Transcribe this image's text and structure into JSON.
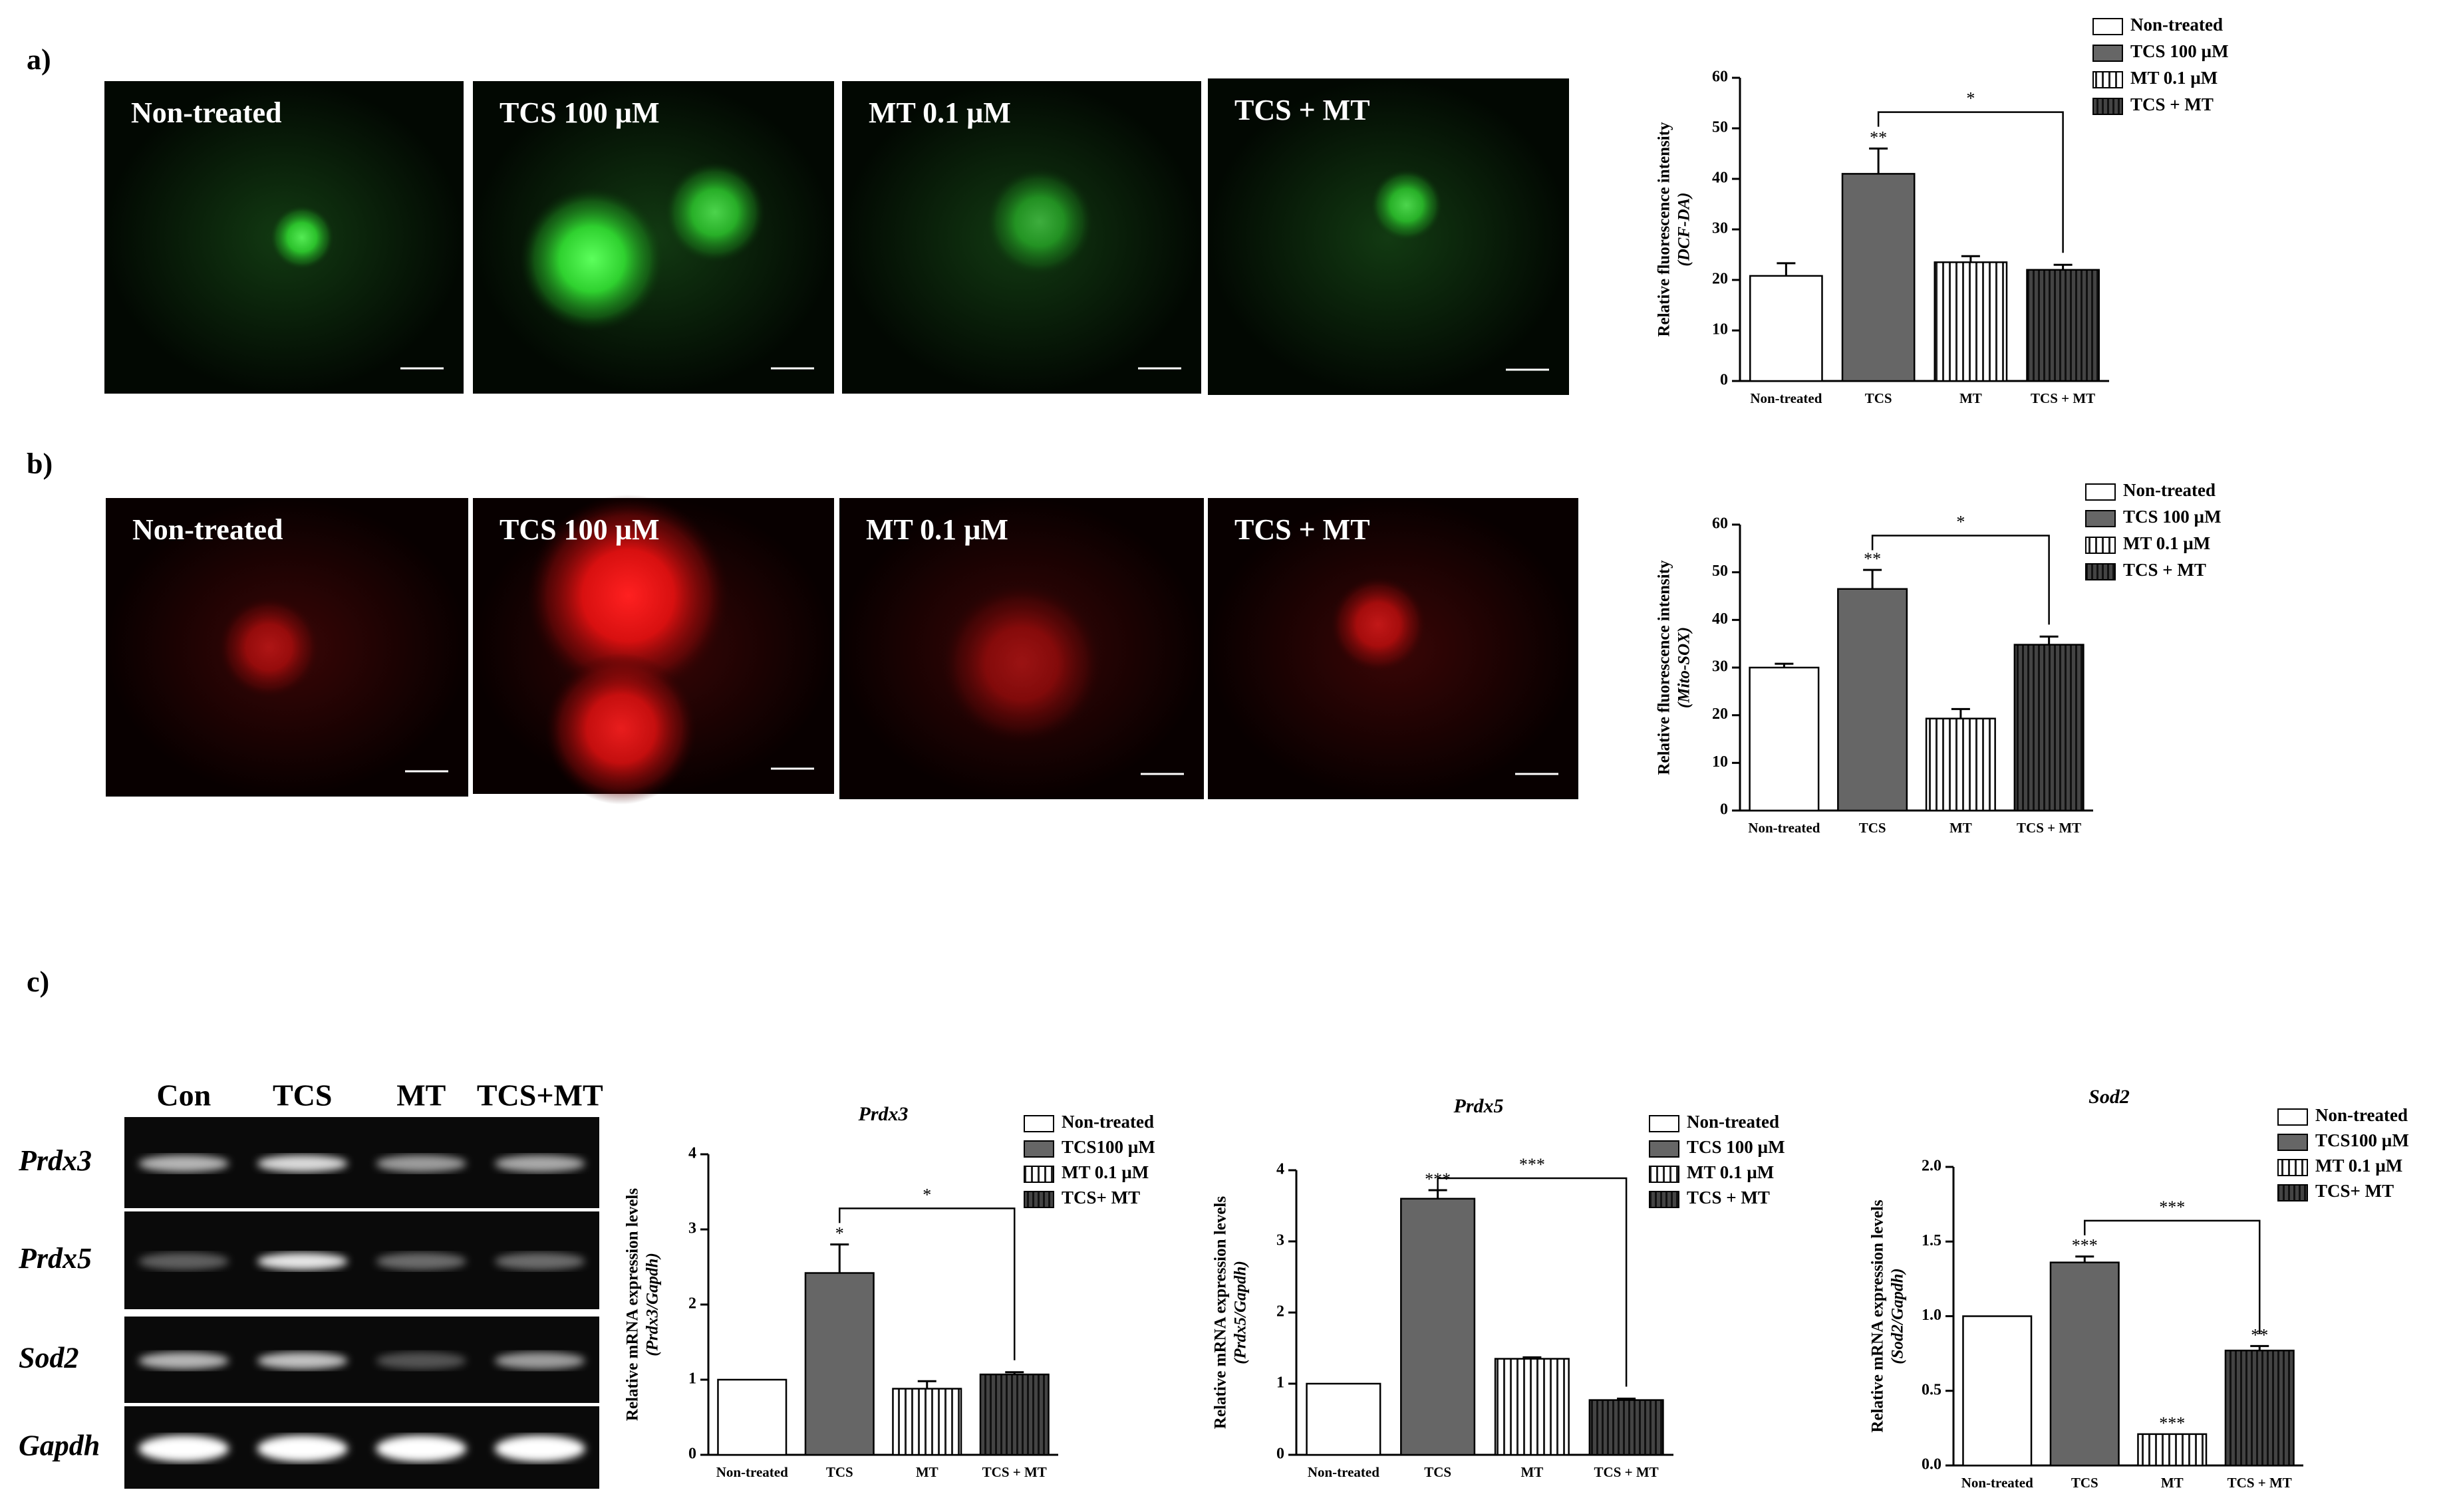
{
  "panels": [
    {
      "label": "a)",
      "images": [
        "Non-treated",
        "TCS 100 µM",
        "MT 0.1 µM",
        "TCS + MT"
      ]
    },
    {
      "label": "b)",
      "images": [
        "Non-treated",
        "TCS 100 µM",
        "MT 0.1 µM",
        "TCS + MT"
      ]
    },
    {
      "label": "c)",
      "lanes": [
        "Con",
        "TCS",
        "MT",
        "TCS+MT"
      ],
      "genes": [
        "Prdx3",
        "Prdx5",
        "Sod2",
        "Gapdh"
      ]
    }
  ],
  "chart_data": [
    {
      "type": "bar",
      "ylabel": [
        "Relative fluorescence intensity",
        "(DCF-DA)"
      ],
      "categories": [
        "Non-treated",
        "TCS",
        "MT",
        "TCS + MT"
      ],
      "values": [
        20.8,
        41,
        23.5,
        22
      ],
      "errors": [
        2.5,
        5,
        1.2,
        1
      ],
      "stars": [
        null,
        "**",
        null,
        null
      ],
      "bracket_label": "*",
      "legend": [
        "Non-treated",
        "TCS 100 µM",
        "MT 0.1 µM",
        "TCS + MT"
      ],
      "ylim": [
        0,
        60
      ],
      "yticks": [
        0,
        10,
        20,
        30,
        40,
        50,
        60
      ]
    },
    {
      "type": "bar",
      "ylabel": [
        "Relative fluorescence intensity",
        "(Mito-SOX)"
      ],
      "categories": [
        "Non-treated",
        "TCS",
        "MT",
        "TCS + MT"
      ],
      "values": [
        30,
        46.5,
        19.3,
        34.8
      ],
      "errors": [
        0.8,
        4,
        2,
        1.7
      ],
      "stars": [
        null,
        "**",
        null,
        null
      ],
      "bracket_label": "*",
      "legend": [
        "Non-treated",
        "TCS 100 µM",
        "MT 0.1 µM",
        "TCS + MT"
      ],
      "ylim": [
        0,
        60
      ],
      "yticks": [
        0,
        10,
        20,
        30,
        40,
        50,
        60
      ]
    },
    {
      "type": "bar",
      "title": "Prdx3",
      "ylabel": [
        "Relative mRNA expression levels",
        "(Prdx3/Gapdh)"
      ],
      "categories": [
        "Non-treated",
        "TCS",
        "MT",
        "TCS + MT"
      ],
      "values": [
        1,
        2.42,
        0.88,
        1.07
      ],
      "errors": [
        null,
        0.38,
        0.1,
        0.03
      ],
      "stars": [
        null,
        "*",
        null,
        null
      ],
      "bracket_label": "*",
      "legend": [
        "Non-treated",
        "TCS100 µM",
        "MT 0.1 µM",
        "TCS+ MT"
      ],
      "ylim": [
        0,
        4
      ],
      "yticks": [
        0,
        1,
        2,
        3,
        4
      ]
    },
    {
      "type": "bar",
      "title": "Prdx5",
      "ylabel": [
        "Relative mRNA expression levels",
        "(Prdx5/Gapdh)"
      ],
      "categories": [
        "Non-treated",
        "TCS",
        "MT",
        "TCS + MT"
      ],
      "values": [
        1,
        3.6,
        1.35,
        0.77
      ],
      "errors": [
        null,
        0.12,
        0.02,
        0.02
      ],
      "stars": [
        null,
        "***",
        null,
        null
      ],
      "bracket_label": "***",
      "legend": [
        "Non-treated",
        "TCS 100 µM",
        "MT 0.1 µM",
        "TCS + MT"
      ],
      "ylim": [
        0,
        4
      ],
      "yticks": [
        0,
        1,
        2,
        3,
        4
      ]
    },
    {
      "type": "bar",
      "title": "Sod2",
      "ylabel": [
        "Relative mRNA expression levels",
        "(Sod2/Gapdh)"
      ],
      "categories": [
        "Non-treated",
        "TCS",
        "MT",
        "TCS + MT"
      ],
      "values": [
        1,
        1.36,
        0.21,
        0.77
      ],
      "errors": [
        null,
        0.04,
        null,
        0.03
      ],
      "stars": [
        null,
        "***",
        "***",
        "**"
      ],
      "bracket_label": "***",
      "legend": [
        "Non-treated",
        "TCS100 µM",
        "MT 0.1 µM",
        "TCS+ MT"
      ],
      "ylim": [
        0,
        2
      ],
      "yticks": [
        {
          "value": 0,
          "label": "0.0"
        },
        {
          "value": 0.5,
          "label": "0.5"
        },
        {
          "value": 1,
          "label": "1.0"
        },
        {
          "value": 1.5,
          "label": "1.5"
        },
        {
          "value": 2,
          "label": "2.0"
        }
      ]
    }
  ]
}
